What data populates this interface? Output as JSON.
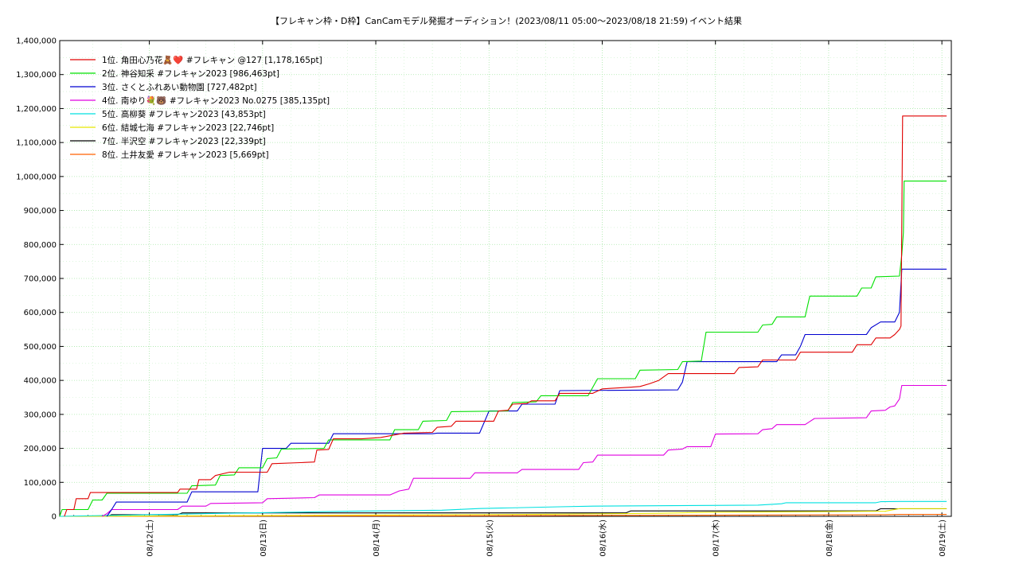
{
  "chart_data": {
    "type": "line",
    "title": "【フレキャン枠・D枠】CanCamモデル発掘オーディション！(2023/08/11 05:00〜2023/08/18 21:59)",
    "title_suffix": "イベント結果",
    "xlabel": "",
    "ylabel": "",
    "x_range": [
      "2023-08-11 05:00",
      "2023-08-19 02:00"
    ],
    "ylim": [
      0,
      1400000
    ],
    "y_ticks": [
      "0",
      "100,000",
      "200,000",
      "300,000",
      "400,000",
      "500,000",
      "600,000",
      "700,000",
      "800,000",
      "900,000",
      "1,000,000",
      "1,100,000",
      "1,200,000",
      "1,300,000",
      "1,400,000"
    ],
    "x_ticks": [
      "08/12(土)",
      "08/13(日)",
      "08/14(月)",
      "08/15(火)",
      "08/16(水)",
      "08/17(木)",
      "08/18(金)",
      "08/19(土)"
    ],
    "grid": true,
    "legend_position": "top-left",
    "series": [
      {
        "name": "1位. 角田心乃花🧸❤️ #フレキャン @127 [1,178,165pt]",
        "color": "#e00000",
        "points": [
          [
            "08/11 06:00",
            0
          ],
          [
            "08/11 06:30",
            20000
          ],
          [
            "08/11 08:00",
            20000
          ],
          [
            "08/11 08:30",
            52000
          ],
          [
            "08/11 11:00",
            52000
          ],
          [
            "08/11 11:30",
            70000
          ],
          [
            "08/12 06:00",
            70000
          ],
          [
            "08/12 06:30",
            80000
          ],
          [
            "08/12 10:00",
            80000
          ],
          [
            "08/12 10:30",
            108000
          ],
          [
            "08/12 13:00",
            108000
          ],
          [
            "08/12 14:00",
            120000
          ],
          [
            "08/12 17:00",
            130000
          ],
          [
            "08/13 01:00",
            130000
          ],
          [
            "08/13 02:00",
            155000
          ],
          [
            "08/13 08:00",
            158000
          ],
          [
            "08/13 11:00",
            160000
          ],
          [
            "08/13 11:30",
            195000
          ],
          [
            "08/13 14:00",
            197000
          ],
          [
            "08/13 15:00",
            228000
          ],
          [
            "08/13 21:00",
            228000
          ],
          [
            "08/14 01:00",
            232000
          ],
          [
            "08/14 06:00",
            245000
          ],
          [
            "08/14 12:00",
            247000
          ],
          [
            "08/14 13:00",
            262000
          ],
          [
            "08/14 16:00",
            265000
          ],
          [
            "08/14 17:00",
            280000
          ],
          [
            "08/15 01:00",
            280000
          ],
          [
            "08/15 02:00",
            310000
          ],
          [
            "08/15 04:00",
            312000
          ],
          [
            "08/15 05:00",
            330000
          ],
          [
            "08/15 08:00",
            332000
          ],
          [
            "08/15 09:00",
            340000
          ],
          [
            "08/15 14:00",
            340000
          ],
          [
            "08/15 15:00",
            362000
          ],
          [
            "08/15 22:00",
            362000
          ],
          [
            "08/16 00:00",
            375000
          ],
          [
            "08/16 06:00",
            380000
          ],
          [
            "08/16 08:00",
            382000
          ],
          [
            "08/16 10:00",
            390000
          ],
          [
            "08/16 12:00",
            400000
          ],
          [
            "08/16 14:00",
            420000
          ],
          [
            "08/17 04:00",
            420000
          ],
          [
            "08/17 05:00",
            438000
          ],
          [
            "08/17 09:00",
            440000
          ],
          [
            "08/17 10:00",
            460000
          ],
          [
            "08/17 17:00",
            460000
          ],
          [
            "08/17 18:00",
            483000
          ],
          [
            "08/18 05:00",
            483000
          ],
          [
            "08/18 06:00",
            505000
          ],
          [
            "08/18 09:00",
            505000
          ],
          [
            "08/18 10:00",
            525000
          ],
          [
            "08/18 13:00",
            525000
          ],
          [
            "08/18 14:00",
            535000
          ],
          [
            "08/18 15:00",
            550000
          ],
          [
            "08/18 15:20",
            560000
          ],
          [
            "08/18 15:40",
            1178165
          ],
          [
            "08/19 01:00",
            1178165
          ]
        ]
      },
      {
        "name": "2位. 神谷知采 #フレキャン2023 [986,463pt]",
        "color": "#00e000",
        "points": [
          [
            "08/11 05:00",
            0
          ],
          [
            "08/11 05:30",
            20000
          ],
          [
            "08/11 11:00",
            20000
          ],
          [
            "08/11 12:00",
            48000
          ],
          [
            "08/11 14:00",
            48000
          ],
          [
            "08/11 15:00",
            68000
          ],
          [
            "08/12 08:00",
            68000
          ],
          [
            "08/12 09:00",
            90000
          ],
          [
            "08/12 14:00",
            92000
          ],
          [
            "08/12 15:00",
            120000
          ],
          [
            "08/12 18:00",
            122000
          ],
          [
            "08/12 19:00",
            143000
          ],
          [
            "08/13 00:00",
            143000
          ],
          [
            "08/13 01:00",
            170000
          ],
          [
            "08/13 03:00",
            172000
          ],
          [
            "08/13 04:00",
            198000
          ],
          [
            "08/13 13:00",
            200000
          ],
          [
            "08/13 14:00",
            225000
          ],
          [
            "08/14 03:00",
            225000
          ],
          [
            "08/14 04:00",
            255000
          ],
          [
            "08/14 09:00",
            255000
          ],
          [
            "08/14 10:00",
            280000
          ],
          [
            "08/14 15:00",
            282000
          ],
          [
            "08/14 16:00",
            308000
          ],
          [
            "08/15 04:00",
            310000
          ],
          [
            "08/15 05:00",
            335000
          ],
          [
            "08/15 10:00",
            337000
          ],
          [
            "08/15 11:00",
            355000
          ],
          [
            "08/15 21:00",
            355000
          ],
          [
            "08/15 23:00",
            405000
          ],
          [
            "08/16 07:00",
            405000
          ],
          [
            "08/16 08:00",
            430000
          ],
          [
            "08/16 16:00",
            432000
          ],
          [
            "08/16 17:00",
            455000
          ],
          [
            "08/16 21:00",
            457000
          ],
          [
            "08/16 22:00",
            542000
          ],
          [
            "08/17 09:00",
            542000
          ],
          [
            "08/17 10:00",
            563000
          ],
          [
            "08/17 12:00",
            565000
          ],
          [
            "08/17 13:00",
            587000
          ],
          [
            "08/17 19:00",
            587000
          ],
          [
            "08/17 20:00",
            648000
          ],
          [
            "08/18 06:00",
            648000
          ],
          [
            "08/18 07:00",
            672000
          ],
          [
            "08/18 09:00",
            672000
          ],
          [
            "08/18 10:00",
            705000
          ],
          [
            "08/18 15:00",
            707000
          ],
          [
            "08/18 15:30",
            770000
          ],
          [
            "08/18 15:50",
            835000
          ],
          [
            "08/18 16:00",
            986463
          ],
          [
            "08/19 01:00",
            986463
          ]
        ]
      },
      {
        "name": "3位. さくとふれあい動物園 [727,482pt]",
        "color": "#0000d0",
        "points": [
          [
            "08/11 15:00",
            0
          ],
          [
            "08/11 16:00",
            20000
          ],
          [
            "08/11 17:00",
            42000
          ],
          [
            "08/12 08:00",
            42000
          ],
          [
            "08/12 09:00",
            72000
          ],
          [
            "08/12 23:00",
            72000
          ],
          [
            "08/13 00:00",
            200000
          ],
          [
            "08/13 05:00",
            200000
          ],
          [
            "08/13 06:00",
            215000
          ],
          [
            "08/13 14:00",
            215000
          ],
          [
            "08/13 15:00",
            243000
          ],
          [
            "08/14 12:00",
            243000
          ],
          [
            "08/14 13:00",
            245000
          ],
          [
            "08/14 22:00",
            245000
          ],
          [
            "08/15 00:00",
            310000
          ],
          [
            "08/15 06:00",
            310000
          ],
          [
            "08/15 07:00",
            330000
          ],
          [
            "08/15 14:00",
            330000
          ],
          [
            "08/15 15:00",
            370000
          ],
          [
            "08/16 16:00",
            372000
          ],
          [
            "08/16 17:00",
            395000
          ],
          [
            "08/16 18:00",
            455000
          ],
          [
            "08/17 13:00",
            455000
          ],
          [
            "08/17 14:00",
            475000
          ],
          [
            "08/17 17:00",
            475000
          ],
          [
            "08/17 18:00",
            500000
          ],
          [
            "08/17 19:00",
            535000
          ],
          [
            "08/18 08:00",
            535000
          ],
          [
            "08/18 09:00",
            555000
          ],
          [
            "08/18 11:00",
            572000
          ],
          [
            "08/18 14:00",
            572000
          ],
          [
            "08/18 15:00",
            600000
          ],
          [
            "08/18 15:30",
            727482
          ],
          [
            "08/19 01:00",
            727482
          ]
        ]
      },
      {
        "name": "4位. 南ゆり💐🐻 #フレキャン2023 No.0275 [385,135pt]",
        "color": "#e000e0",
        "points": [
          [
            "08/11 14:00",
            0
          ],
          [
            "08/11 15:00",
            8000
          ],
          [
            "08/11 16:00",
            20000
          ],
          [
            "08/12 06:00",
            20000
          ],
          [
            "08/12 07:00",
            30000
          ],
          [
            "08/12 12:00",
            30000
          ],
          [
            "08/12 13:00",
            38000
          ],
          [
            "08/13 00:00",
            40000
          ],
          [
            "08/13 01:00",
            52000
          ],
          [
            "08/13 11:00",
            55000
          ],
          [
            "08/13 12:00",
            63000
          ],
          [
            "08/14 03:00",
            63000
          ],
          [
            "08/14 05:00",
            75000
          ],
          [
            "08/14 07:00",
            80000
          ],
          [
            "08/14 08:00",
            112000
          ],
          [
            "08/14 20:00",
            112000
          ],
          [
            "08/14 21:00",
            128000
          ],
          [
            "08/15 06:00",
            128000
          ],
          [
            "08/15 07:00",
            138000
          ],
          [
            "08/15 19:00",
            138000
          ],
          [
            "08/15 20:00",
            158000
          ],
          [
            "08/15 22:00",
            160000
          ],
          [
            "08/15 23:00",
            180000
          ],
          [
            "08/16 13:00",
            180000
          ],
          [
            "08/16 14:00",
            195000
          ],
          [
            "08/16 17:00",
            198000
          ],
          [
            "08/16 18:00",
            205000
          ],
          [
            "08/16 23:00",
            205000
          ],
          [
            "08/17 00:00",
            242000
          ],
          [
            "08/17 09:00",
            243000
          ],
          [
            "08/17 10:00",
            255000
          ],
          [
            "08/17 12:00",
            258000
          ],
          [
            "08/17 13:00",
            270000
          ],
          [
            "08/17 19:00",
            270000
          ],
          [
            "08/17 21:00",
            288000
          ],
          [
            "08/18 08:00",
            290000
          ],
          [
            "08/18 09:00",
            310000
          ],
          [
            "08/18 12:00",
            312000
          ],
          [
            "08/18 13:00",
            322000
          ],
          [
            "08/18 14:00",
            325000
          ],
          [
            "08/18 15:00",
            345000
          ],
          [
            "08/18 15:30",
            385135
          ],
          [
            "08/19 01:00",
            385135
          ]
        ]
      },
      {
        "name": "5位. 高柳葵 #フレキャン2023 [43,853pt]",
        "color": "#00e0e0",
        "points": [
          [
            "08/11 05:00",
            0
          ],
          [
            "08/12 00:00",
            5000
          ],
          [
            "08/12 12:00",
            8000
          ],
          [
            "08/13 05:00",
            12000
          ],
          [
            "08/13 18:00",
            15000
          ],
          [
            "08/14 14:00",
            18000
          ],
          [
            "08/14 22:00",
            23000
          ],
          [
            "08/15 15:00",
            28000
          ],
          [
            "08/15 22:00",
            30000
          ],
          [
            "08/16 22:00",
            32000
          ],
          [
            "08/17 09:00",
            33000
          ],
          [
            "08/17 14:00",
            37000
          ],
          [
            "08/17 15:00",
            40000
          ],
          [
            "08/18 10:00",
            40000
          ],
          [
            "08/18 11:00",
            43000
          ],
          [
            "08/18 15:00",
            43853
          ],
          [
            "08/19 01:00",
            43853
          ]
        ]
      },
      {
        "name": "6位. 結城七海 #フレキャン2023 [22,746pt]",
        "color": "#e8e800",
        "points": [
          [
            "08/11 05:00",
            0
          ],
          [
            "08/13 12:00",
            3000
          ],
          [
            "08/15 12:00",
            6000
          ],
          [
            "08/16 12:00",
            9000
          ],
          [
            "08/16 23:00",
            12000
          ],
          [
            "08/18 12:00",
            15000
          ],
          [
            "08/18 15:00",
            22746
          ],
          [
            "08/19 01:00",
            22746
          ]
        ]
      },
      {
        "name": "7位. 半沢空 #フレキャン2023 [22,339pt]",
        "color": "#000000",
        "points": [
          [
            "08/11 15:00",
            0
          ],
          [
            "08/11 16:00",
            5000
          ],
          [
            "08/12 06:00",
            5000
          ],
          [
            "08/12 07:00",
            10000
          ],
          [
            "08/16 05:00",
            10000
          ],
          [
            "08/16 06:00",
            16000
          ],
          [
            "08/18 10:00",
            16000
          ],
          [
            "08/18 11:00",
            22339
          ],
          [
            "08/19 01:00",
            22339
          ]
        ]
      },
      {
        "name": "8位. 土井友愛 #フレキャン2023 [5,669pt]",
        "color": "#ff6000",
        "points": [
          [
            "08/11 05:00",
            0
          ],
          [
            "08/14 12:00",
            1500
          ],
          [
            "08/16 12:00",
            3000
          ],
          [
            "08/18 12:00",
            5000
          ],
          [
            "08/18 15:00",
            5669
          ],
          [
            "08/19 01:00",
            5669
          ]
        ]
      }
    ]
  }
}
